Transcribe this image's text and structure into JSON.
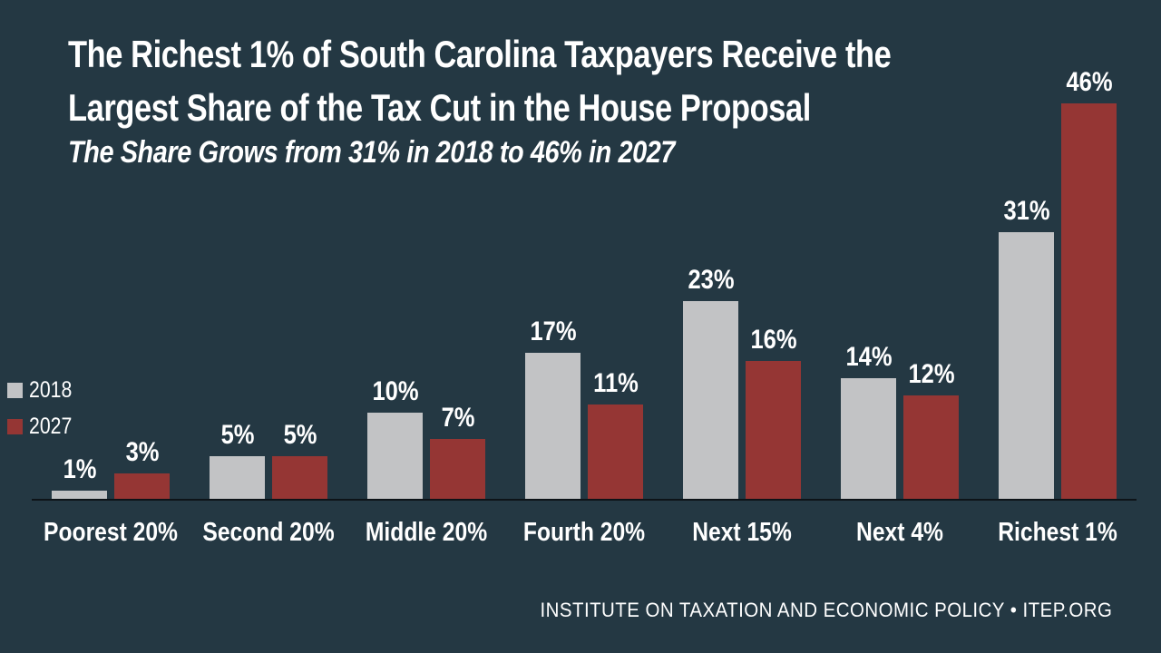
{
  "header": {
    "title_line1": "The Richest 1% of South Carolina Taxpayers Receive the",
    "title_line2": "Largest Share of the Tax Cut in the House Proposal",
    "subtitle": "The Share Grows from 31% in 2018 to 46% in 2027"
  },
  "chart_data": {
    "type": "bar",
    "title": "The Richest 1% of South Carolina Taxpayers Receive the Largest Share of the Tax Cut in the House Proposal",
    "subtitle": "The Share Grows from 31% in 2018 to 46% in 2027",
    "categories": [
      "Poorest 20%",
      "Second 20%",
      "Middle 20%",
      "Fourth 20%",
      "Next 15%",
      "Next 4%",
      "Richest 1%"
    ],
    "series": [
      {
        "name": "2018",
        "color": "#c2c3c5",
        "values": [
          1,
          5,
          10,
          17,
          23,
          14,
          31
        ]
      },
      {
        "name": "2027",
        "color": "#953634",
        "values": [
          3,
          5,
          7,
          11,
          16,
          12,
          46
        ]
      }
    ],
    "value_suffix": "%",
    "data_labels": true,
    "legend_position": "left",
    "grid": false,
    "xlabel": "",
    "ylabel": "",
    "ylim": [
      0,
      48
    ]
  },
  "footer": {
    "text": "INSTITUTE ON TAXATION AND ECONOMIC POLICY • ITEP.ORG"
  },
  "colors": {
    "background": "#243843",
    "bar_2018": "#c2c3c5",
    "bar_2027": "#953634",
    "axis": "#0d1318",
    "text": "#ffffff"
  }
}
